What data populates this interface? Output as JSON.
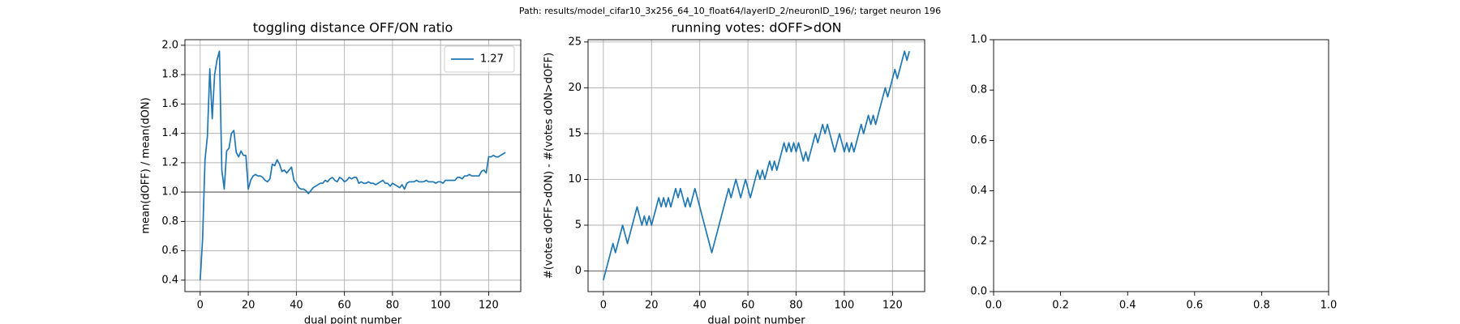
{
  "figure_title": "Path: results/model_cifar10_3x256_64_10_float64/layerID_2/neuronID_196/; target neuron 196",
  "chart_data": [
    {
      "type": "line",
      "title": "toggling distance OFF/ON ratio",
      "xlabel": "dual point number",
      "ylabel": "mean(dOFF) / mean(dON)",
      "x": [
        0,
        1,
        2,
        3,
        4,
        5,
        6,
        7,
        8,
        9,
        10,
        11,
        12,
        13,
        14,
        15,
        16,
        17,
        18,
        19,
        20,
        21,
        22,
        23,
        24,
        25,
        26,
        27,
        28,
        29,
        30,
        31,
        32,
        33,
        34,
        35,
        36,
        37,
        38,
        39,
        40,
        41,
        42,
        43,
        44,
        45,
        46,
        47,
        48,
        49,
        50,
        51,
        52,
        53,
        54,
        55,
        56,
        57,
        58,
        59,
        60,
        61,
        62,
        63,
        64,
        65,
        66,
        67,
        68,
        69,
        70,
        71,
        72,
        73,
        74,
        75,
        76,
        77,
        78,
        79,
        80,
        81,
        82,
        83,
        84,
        85,
        86,
        87,
        88,
        89,
        90,
        91,
        92,
        93,
        94,
        95,
        96,
        97,
        98,
        99,
        100,
        101,
        102,
        103,
        104,
        105,
        106,
        107,
        108,
        109,
        110,
        111,
        112,
        113,
        114,
        115,
        116,
        117,
        118,
        119,
        120,
        121,
        122,
        123,
        124,
        125,
        126,
        127
      ],
      "series": [
        {
          "name": "1.27",
          "color": "#1f77b4",
          "values": [
            0.4,
            0.68,
            1.22,
            1.38,
            1.84,
            1.5,
            1.8,
            1.9,
            1.96,
            1.15,
            1.02,
            1.28,
            1.3,
            1.4,
            1.42,
            1.27,
            1.24,
            1.28,
            1.25,
            1.25,
            1.02,
            1.08,
            1.11,
            1.12,
            1.11,
            1.11,
            1.1,
            1.08,
            1.07,
            1.09,
            1.19,
            1.18,
            1.22,
            1.19,
            1.14,
            1.15,
            1.13,
            1.15,
            1.17,
            1.08,
            1.06,
            1.03,
            1.02,
            1.02,
            1.01,
            0.99,
            1.01,
            1.03,
            1.04,
            1.05,
            1.06,
            1.06,
            1.08,
            1.07,
            1.09,
            1.1,
            1.08,
            1.07,
            1.1,
            1.09,
            1.07,
            1.08,
            1.1,
            1.09,
            1.1,
            1.1,
            1.06,
            1.07,
            1.06,
            1.06,
            1.07,
            1.06,
            1.06,
            1.05,
            1.06,
            1.07,
            1.08,
            1.06,
            1.06,
            1.04,
            1.06,
            1.05,
            1.04,
            1.03,
            1.05,
            1.02,
            1.06,
            1.07,
            1.07,
            1.07,
            1.08,
            1.07,
            1.07,
            1.07,
            1.08,
            1.07,
            1.07,
            1.07,
            1.06,
            1.07,
            1.07,
            1.06,
            1.08,
            1.08,
            1.08,
            1.08,
            1.08,
            1.1,
            1.1,
            1.09,
            1.11,
            1.11,
            1.12,
            1.11,
            1.11,
            1.11,
            1.11,
            1.14,
            1.15,
            1.13,
            1.24,
            1.24,
            1.25,
            1.24,
            1.24,
            1.25,
            1.26,
            1.27
          ]
        }
      ],
      "reference_line": {
        "value": 1,
        "color": "#808080"
      },
      "xlim": [
        -6.35,
        133.35
      ],
      "ylim": [
        0.322,
        2.038
      ],
      "xticks": [
        0,
        20,
        40,
        60,
        80,
        100,
        120
      ],
      "yticks": [
        0.4,
        0.6,
        0.8,
        {
          "value": 1,
          "label": "1.0"
        },
        1.2,
        1.4,
        1.6,
        1.8,
        {
          "value": 2,
          "label": "2.0"
        }
      ],
      "grid": true,
      "legend": "upper right"
    },
    {
      "type": "line",
      "title": "running votes: dOFF>dON",
      "xlabel": "dual point number",
      "ylabel": "#(votes dOFF>dON) - #(votes dON>dOFF)",
      "x": [
        0,
        1,
        2,
        3,
        4,
        5,
        6,
        7,
        8,
        9,
        10,
        11,
        12,
        13,
        14,
        15,
        16,
        17,
        18,
        19,
        20,
        21,
        22,
        23,
        24,
        25,
        26,
        27,
        28,
        29,
        30,
        31,
        32,
        33,
        34,
        35,
        36,
        37,
        38,
        39,
        40,
        41,
        42,
        43,
        44,
        45,
        46,
        47,
        48,
        49,
        50,
        51,
        52,
        53,
        54,
        55,
        56,
        57,
        58,
        59,
        60,
        61,
        62,
        63,
        64,
        65,
        66,
        67,
        68,
        69,
        70,
        71,
        72,
        73,
        74,
        75,
        76,
        77,
        78,
        79,
        80,
        81,
        82,
        83,
        84,
        85,
        86,
        87,
        88,
        89,
        90,
        91,
        92,
        93,
        94,
        95,
        96,
        97,
        98,
        99,
        100,
        101,
        102,
        103,
        104,
        105,
        106,
        107,
        108,
        109,
        110,
        111,
        112,
        113,
        114,
        115,
        116,
        117,
        118,
        119,
        120,
        121,
        122,
        123,
        124,
        125,
        126,
        127
      ],
      "series": [
        {
          "color": "#1f77b4",
          "values": [
            -1,
            0,
            1,
            2,
            3,
            2,
            3,
            4,
            5,
            4,
            3,
            4,
            5,
            6,
            7,
            6,
            5,
            6,
            5,
            6,
            5,
            6,
            7,
            8,
            7,
            8,
            7,
            8,
            7,
            8,
            9,
            8,
            9,
            8,
            7,
            8,
            7,
            8,
            9,
            8,
            7,
            6,
            5,
            4,
            3,
            2,
            3,
            4,
            5,
            6,
            7,
            8,
            9,
            8,
            9,
            10,
            9,
            8,
            9,
            10,
            9,
            8,
            9,
            10,
            11,
            10,
            11,
            10,
            11,
            12,
            11,
            12,
            11,
            12,
            13,
            14,
            13,
            14,
            13,
            14,
            13,
            14,
            13,
            12,
            13,
            12,
            13,
            14,
            15,
            14,
            15,
            16,
            15,
            16,
            15,
            14,
            13,
            14,
            15,
            14,
            13,
            14,
            13,
            14,
            13,
            14,
            15,
            16,
            15,
            16,
            17,
            16,
            17,
            16,
            17,
            18,
            19,
            20,
            19,
            20,
            21,
            22,
            21,
            22,
            23,
            24,
            23,
            24
          ]
        }
      ],
      "reference_line": {
        "value": 0,
        "color": "#808080"
      },
      "xlim": [
        -6.35,
        133.35
      ],
      "ylim": [
        -2.25,
        25.25
      ],
      "xticks": [
        0,
        20,
        40,
        60,
        80,
        100,
        120
      ],
      "yticks": [
        0,
        5,
        10,
        15,
        20,
        25
      ],
      "grid": true
    },
    {
      "type": "line",
      "series": [],
      "xlim": [
        0,
        1
      ],
      "ylim": [
        0,
        1
      ],
      "xticks": [
        {
          "value": 0,
          "label": "0.0"
        },
        0.2,
        0.4,
        0.6,
        0.8,
        {
          "value": 1,
          "label": "1.0"
        }
      ],
      "yticks": [
        {
          "value": 0,
          "label": "0.0"
        },
        0.2,
        0.4,
        0.6,
        0.8,
        {
          "value": 1,
          "label": "1.0"
        }
      ],
      "grid": false
    }
  ]
}
